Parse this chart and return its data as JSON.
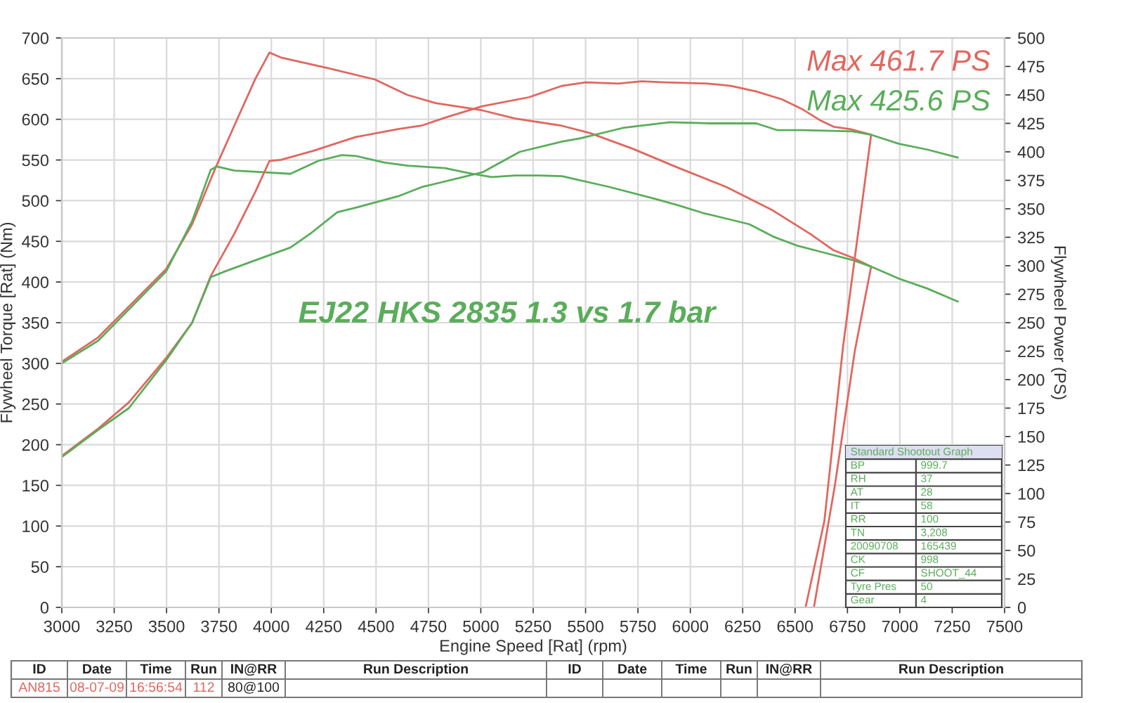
{
  "chart_data": {
    "type": "line",
    "xlabel": "Engine Speed [Rat] (rpm)",
    "ylabel": "Flywheel Torque [Rat] (Nm)",
    "y2label": "Flywheel Power (PS)",
    "xlim": [
      3000,
      7500
    ],
    "xticks": [
      3000,
      3250,
      3500,
      3750,
      4000,
      4250,
      4500,
      4750,
      5000,
      5250,
      5500,
      5750,
      6000,
      6250,
      6500,
      6750,
      7000,
      7250,
      7500
    ],
    "ylim": [
      0,
      700
    ],
    "yticks": [
      0,
      50,
      100,
      150,
      200,
      250,
      300,
      350,
      400,
      450,
      500,
      550,
      600,
      650,
      700
    ],
    "y2lim": [
      0,
      500
    ],
    "y2ticks": [
      0,
      25,
      50,
      75,
      100,
      125,
      150,
      175,
      200,
      225,
      250,
      275,
      300,
      325,
      350,
      375,
      400,
      425,
      450,
      475,
      500
    ],
    "grid": true,
    "series": [
      {
        "color": "#e0675e",
        "x": [
          3000,
          3174,
          3498,
          3622,
          3733,
          3823,
          3924,
          3991,
          4046,
          4270,
          4494,
          4649,
          4784,
          5007,
          5164,
          5388,
          5522,
          5723,
          5946,
          6170,
          6394,
          6573,
          6684,
          6774,
          6863,
          6785,
          6690,
          6590
        ],
        "values": [
          302,
          332,
          416,
          471,
          540,
          592,
          650,
          682,
          676,
          663,
          649,
          630,
          620,
          611,
          601,
          592,
          583,
          564,
          540,
          517,
          488,
          459,
          439,
          430,
          419,
          315,
          150,
          0
        ]
      },
      {
        "color": "#e0675e",
        "axis": "y2",
        "x": [
          3000,
          3174,
          3320,
          3498,
          3622,
          3711,
          3823,
          3924,
          3991,
          4046,
          4202,
          4403,
          4605,
          4717,
          4829,
          5007,
          5231,
          5388,
          5500,
          5656,
          5768,
          5879,
          6081,
          6193,
          6315,
          6439,
          6539,
          6617,
          6684,
          6763,
          6863,
          6729,
          6640,
          6550
        ],
        "values": [
          133,
          157,
          180,
          219,
          250,
          291,
          328,
          365,
          392,
          393,
          401,
          413,
          420,
          423,
          430,
          440,
          448,
          458,
          461,
          460,
          462,
          461,
          460,
          458,
          453,
          446,
          437,
          428,
          422,
          420,
          415,
          229,
          76,
          0
        ]
      },
      {
        "color": "#5aad5a",
        "x": [
          3000,
          3174,
          3498,
          3622,
          3711,
          3740,
          3823,
          3957,
          4091,
          4225,
          4337,
          4403,
          4538,
          4649,
          4829,
          4940,
          5052,
          5164,
          5276,
          5388,
          5611,
          5835,
          5946,
          6058,
          6282,
          6394,
          6506,
          6640,
          6774,
          6863,
          6997,
          7131,
          7277
        ],
        "values": [
          300,
          328,
          413,
          475,
          538,
          542,
          537,
          535,
          533,
          549,
          556,
          555,
          547,
          543,
          540,
          534,
          529,
          531,
          531,
          530,
          517,
          502,
          494,
          485,
          471,
          456,
          445,
          436,
          427,
          419,
          404,
          392,
          376
        ]
      },
      {
        "color": "#5aad5a",
        "axis": "y2",
        "x": [
          3000,
          3174,
          3320,
          3498,
          3622,
          3711,
          3778,
          3957,
          4091,
          4192,
          4315,
          4403,
          4605,
          4717,
          4806,
          5007,
          5186,
          5388,
          5477,
          5678,
          5902,
          6103,
          6315,
          6416,
          6539,
          6774,
          6863,
          6997,
          7131,
          7277
        ],
        "values": [
          132,
          156,
          175,
          217,
          250,
          290,
          295,
          307,
          316,
          329,
          347,
          351,
          361,
          369,
          373,
          382,
          400,
          409,
          412,
          421,
          426,
          425,
          425,
          419,
          419,
          418,
          415,
          407,
          402,
          395
        ]
      }
    ],
    "annotations": [
      "EJ22 HKS 2835 1.3 vs 1.7 bar",
      "Max 461.7 PS",
      "Max 425.6 PS",
      "Standard Shootout Graph",
      "BP",
      "999.7",
      "RH",
      "37",
      "AT",
      "28",
      "IT",
      "58",
      "RR",
      "100",
      "TN",
      "3,208",
      "20090708",
      "165439",
      "CK",
      "998",
      "CF",
      "SHOOT_44",
      "Tyre Pres",
      "50",
      "Gear",
      "4",
      "ID",
      "Date",
      "Time",
      "Run",
      "IN@RR",
      "Run Description",
      "ID",
      "Date",
      "Time",
      "Run",
      "IN@RR",
      "Run Description",
      "AN815",
      "08-07-09",
      "16:56:54",
      "112",
      "80@100"
    ]
  }
}
